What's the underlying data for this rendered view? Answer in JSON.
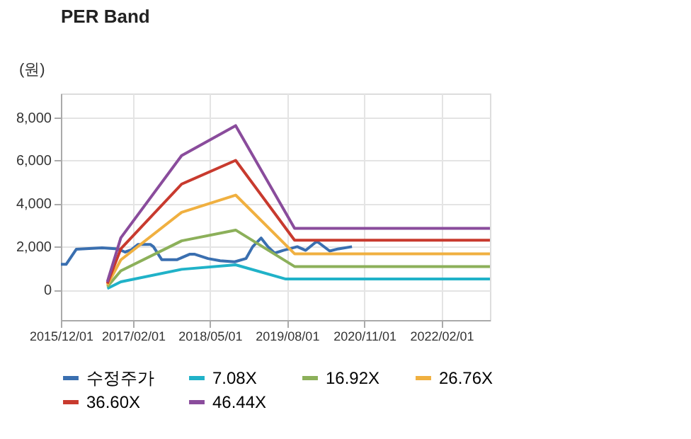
{
  "chart_data": {
    "type": "line",
    "title": "PER Band",
    "ylabel": "(원)",
    "xlim": [
      "2015-12-01",
      "2022-11-15"
    ],
    "ylim": [
      -1400,
      9100
    ],
    "xticks": [
      {
        "value": "2015-12-01",
        "label": "2015/12/01"
      },
      {
        "value": "2017-02-01",
        "label": "2017/02/01"
      },
      {
        "value": "2018-05-01",
        "label": "2018/05/01"
      },
      {
        "value": "2019-08-01",
        "label": "2019/08/01"
      },
      {
        "value": "2020-11-01",
        "label": "2020/11/01"
      },
      {
        "value": "2022-02-01",
        "label": "2022/02/01"
      }
    ],
    "yticks": [
      {
        "value": 0,
        "label": "0"
      },
      {
        "value": 2000,
        "label": "2,000"
      },
      {
        "value": 4000,
        "label": "4,000"
      },
      {
        "value": 6000,
        "label": "6,000"
      },
      {
        "value": 8000,
        "label": "8,000"
      }
    ],
    "grid": true,
    "legend": "bottom",
    "marker": "none",
    "line_style": "solid",
    "series": [
      {
        "name": "수정주가",
        "color": "#3a6fb0",
        "x": [
          "2015-12-01",
          "2016-01-01",
          "2016-03-01",
          "2016-08-01",
          "2016-11-01",
          "2016-12-15",
          "2017-01-20",
          "2017-03-01",
          "2017-05-15",
          "2017-06-01",
          "2017-07-20",
          "2017-10-20",
          "2018-01-01",
          "2018-02-01",
          "2018-04-20",
          "2018-07-01",
          "2018-09-25",
          "2018-12-01",
          "2019-01-10",
          "2019-03-01",
          "2019-04-10",
          "2019-05-20",
          "2019-07-10",
          "2019-10-01",
          "2019-11-20",
          "2020-01-25",
          "2020-04-10",
          "2020-06-01",
          "2020-08-20"
        ],
        "values": [
          1180,
          1180,
          1880,
          1950,
          1900,
          1750,
          1850,
          2100,
          2100,
          2000,
          1400,
          1400,
          1650,
          1650,
          1450,
          1350,
          1300,
          1450,
          2000,
          2400,
          2000,
          1700,
          1830,
          2000,
          1830,
          2250,
          1800,
          1900,
          2000
        ]
      },
      {
        "name": "7.08X",
        "color": "#20b2c8",
        "x": [
          "2016-09-01",
          "2016-11-20",
          "2017-11-15",
          "2018-10-01",
          "2019-07-25",
          "2022-11-15"
        ],
        "values": [
          60,
          370,
          950,
          1160,
          500,
          500
        ]
      },
      {
        "name": "16.92X",
        "color": "#8cb05a",
        "x": [
          "2016-09-01",
          "2016-11-20",
          "2017-11-15",
          "2018-10-01",
          "2019-09-15",
          "2022-11-15"
        ],
        "values": [
          140,
          880,
          2270,
          2770,
          1080,
          1080
        ]
      },
      {
        "name": "26.76X",
        "color": "#f0b040",
        "x": [
          "2016-09-01",
          "2016-11-20",
          "2017-11-15",
          "2018-10-01",
          "2019-09-15",
          "2022-11-15"
        ],
        "values": [
          220,
          1390,
          3590,
          4390,
          1670,
          1670
        ]
      },
      {
        "name": "36.60X",
        "color": "#c83a2e",
        "x": [
          "2016-09-01",
          "2016-11-20",
          "2017-11-15",
          "2018-10-01",
          "2019-09-15",
          "2022-11-15"
        ],
        "values": [
          290,
          1900,
          4900,
          6000,
          2300,
          2300
        ]
      },
      {
        "name": "46.44X",
        "color": "#8a4c9c",
        "x": [
          "2016-09-01",
          "2016-11-20",
          "2017-11-15",
          "2018-10-01",
          "2019-09-15",
          "2022-11-15"
        ],
        "values": [
          370,
          2410,
          6220,
          7610,
          2850,
          2850
        ]
      }
    ]
  }
}
